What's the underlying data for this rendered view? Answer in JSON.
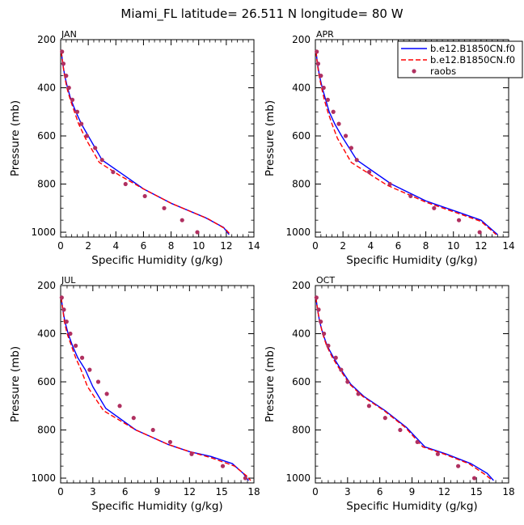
{
  "title": "Miami_FL  latitude= 26.511 N longitude= 80 W",
  "legend": {
    "items": [
      {
        "label": "b.e12.B1850CN.f0",
        "color": "#0000ff",
        "style": "solid"
      },
      {
        "label": "b.e12.B1850CN.f0",
        "color": "#ff0000",
        "style": "dashed"
      },
      {
        "label": "raobs",
        "color": "#b03060",
        "style": "dot"
      }
    ]
  },
  "colors": {
    "model_solid": "#0000ff",
    "model_dashed": "#ff0000",
    "obs": "#b03060"
  },
  "chart_data": [
    {
      "type": "line",
      "panel": "JAN",
      "xlabel": "Specific Humidity (g/kg)",
      "ylabel": "Pressure (mb)",
      "xlim": [
        0,
        14
      ],
      "ylim": [
        1020,
        200
      ],
      "xticks": [
        0,
        2,
        4,
        6,
        8,
        10,
        12,
        14
      ],
      "yticks": [
        200,
        400,
        600,
        800,
        1000
      ],
      "series": [
        {
          "style": "solid",
          "color": "#0000ff",
          "x": [
            0.05,
            0.15,
            0.3,
            0.5,
            0.75,
            1.1,
            1.5,
            2.0,
            3.0,
            4.5,
            6.0,
            8.0,
            10.5,
            11.8,
            12.2
          ],
          "y": [
            250,
            300,
            350,
            400,
            450,
            500,
            550,
            600,
            700,
            760,
            820,
            880,
            940,
            980,
            1010
          ]
        },
        {
          "style": "dashed",
          "color": "#ff0000",
          "x": [
            0.05,
            0.15,
            0.28,
            0.45,
            0.7,
            1.0,
            1.3,
            1.8,
            2.8,
            4.3,
            6.0,
            8.0,
            10.7,
            11.9,
            12.3
          ],
          "y": [
            250,
            300,
            350,
            400,
            450,
            500,
            550,
            610,
            710,
            765,
            820,
            880,
            945,
            985,
            1010
          ]
        },
        {
          "style": "dot",
          "color": "#b03060",
          "x": [
            0.1,
            0.2,
            0.4,
            0.6,
            0.85,
            1.2,
            1.5,
            1.9,
            2.5,
            3.0,
            3.8,
            4.7,
            6.1,
            7.5,
            8.8,
            9.9
          ],
          "y": [
            250,
            300,
            350,
            400,
            450,
            500,
            550,
            600,
            650,
            700,
            750,
            800,
            850,
            900,
            950,
            1000
          ]
        }
      ]
    },
    {
      "type": "line",
      "panel": "APR",
      "xlabel": "Specific Humidity (g/kg)",
      "ylabel": "Pressure (mb)",
      "xlim": [
        0,
        14
      ],
      "ylim": [
        1020,
        200
      ],
      "xticks": [
        0,
        2,
        4,
        6,
        8,
        10,
        12,
        14
      ],
      "yticks": [
        200,
        400,
        600,
        800,
        1000
      ],
      "series": [
        {
          "style": "solid",
          "color": "#0000ff",
          "x": [
            0.05,
            0.15,
            0.3,
            0.5,
            0.75,
            1.0,
            1.4,
            1.9,
            3.0,
            5.5,
            8.0,
            10.5,
            12.0,
            13.2
          ],
          "y": [
            250,
            300,
            350,
            400,
            450,
            500,
            550,
            600,
            700,
            800,
            870,
            920,
            950,
            1010
          ]
        },
        {
          "style": "dashed",
          "color": "#ff0000",
          "x": [
            0.05,
            0.14,
            0.27,
            0.45,
            0.65,
            0.9,
            1.2,
            1.6,
            2.6,
            5.2,
            8.0,
            10.5,
            12.0,
            13.1
          ],
          "y": [
            250,
            300,
            350,
            400,
            450,
            500,
            550,
            610,
            710,
            805,
            875,
            925,
            955,
            1010
          ]
        },
        {
          "style": "dot",
          "color": "#b03060",
          "x": [
            0.1,
            0.2,
            0.4,
            0.6,
            0.9,
            1.3,
            1.7,
            2.2,
            2.6,
            3.0,
            3.9,
            5.4,
            6.9,
            8.6,
            10.4,
            11.9
          ],
          "y": [
            250,
            300,
            350,
            400,
            450,
            500,
            550,
            600,
            650,
            700,
            750,
            800,
            850,
            900,
            950,
            1000
          ]
        }
      ]
    },
    {
      "type": "line",
      "panel": "JUL",
      "xlabel": "Specific Humidity (g/kg)",
      "ylabel": "Pressure (mb)",
      "xlim": [
        0,
        18
      ],
      "ylim": [
        1020,
        200
      ],
      "xticks": [
        0,
        3,
        6,
        9,
        12,
        15,
        18
      ],
      "yticks": [
        200,
        400,
        600,
        800,
        1000
      ],
      "series": [
        {
          "style": "solid",
          "color": "#0000ff",
          "x": [
            0.05,
            0.2,
            0.4,
            0.7,
            1.1,
            1.6,
            2.3,
            3.0,
            4.2,
            7.0,
            10.0,
            12.0,
            14.0,
            16.0,
            17.0,
            17.5
          ],
          "y": [
            250,
            300,
            350,
            400,
            450,
            500,
            550,
            620,
            710,
            800,
            860,
            890,
            910,
            940,
            980,
            1010
          ]
        },
        {
          "style": "dashed",
          "color": "#ff0000",
          "x": [
            0.05,
            0.2,
            0.35,
            0.6,
            1.0,
            1.4,
            1.9,
            2.5,
            4.0,
            7.0,
            10.0,
            12.0,
            14.0,
            16.2,
            17.3,
            17.7
          ],
          "y": [
            250,
            300,
            350,
            400,
            450,
            500,
            550,
            620,
            720,
            800,
            860,
            890,
            915,
            950,
            990,
            1010
          ]
        },
        {
          "style": "dot",
          "color": "#b03060",
          "x": [
            0.1,
            0.3,
            0.55,
            0.9,
            1.4,
            2.0,
            2.7,
            3.5,
            4.3,
            5.5,
            6.8,
            8.6,
            10.2,
            12.2,
            15.1,
            17.2
          ],
          "y": [
            250,
            300,
            350,
            400,
            450,
            500,
            550,
            600,
            650,
            700,
            750,
            800,
            850,
            900,
            950,
            1000
          ]
        }
      ]
    },
    {
      "type": "line",
      "panel": "OCT",
      "xlabel": "Specific Humidity (g/kg)",
      "ylabel": "Pressure (mb)",
      "xlim": [
        0,
        18
      ],
      "ylim": [
        1020,
        200
      ],
      "xticks": [
        0,
        3,
        6,
        9,
        12,
        15,
        18
      ],
      "yticks": [
        200,
        400,
        600,
        800,
        1000
      ],
      "series": [
        {
          "style": "solid",
          "color": "#0000ff",
          "x": [
            0.05,
            0.2,
            0.4,
            0.7,
            1.1,
            1.7,
            2.4,
            3.3,
            4.5,
            6.5,
            8.5,
            10.2,
            12.2,
            14.5,
            16.0,
            16.6
          ],
          "y": [
            250,
            300,
            350,
            400,
            450,
            500,
            550,
            610,
            660,
            720,
            790,
            870,
            900,
            940,
            980,
            1010
          ]
        },
        {
          "style": "dashed",
          "color": "#ff0000",
          "x": [
            0.05,
            0.2,
            0.4,
            0.68,
            1.05,
            1.6,
            2.3,
            3.2,
            4.4,
            6.4,
            8.4,
            10.0,
            12.0,
            14.3,
            15.8,
            16.5
          ],
          "y": [
            250,
            300,
            350,
            400,
            450,
            500,
            550,
            610,
            660,
            720,
            790,
            870,
            900,
            940,
            985,
            1010
          ]
        },
        {
          "style": "dot",
          "color": "#b03060",
          "x": [
            0.1,
            0.3,
            0.5,
            0.8,
            1.2,
            1.9,
            2.4,
            3.0,
            4.0,
            5.0,
            6.5,
            7.9,
            9.5,
            11.4,
            13.3,
            14.8
          ],
          "y": [
            250,
            300,
            350,
            400,
            450,
            500,
            550,
            600,
            650,
            700,
            750,
            800,
            850,
            900,
            950,
            1000
          ]
        }
      ]
    }
  ]
}
